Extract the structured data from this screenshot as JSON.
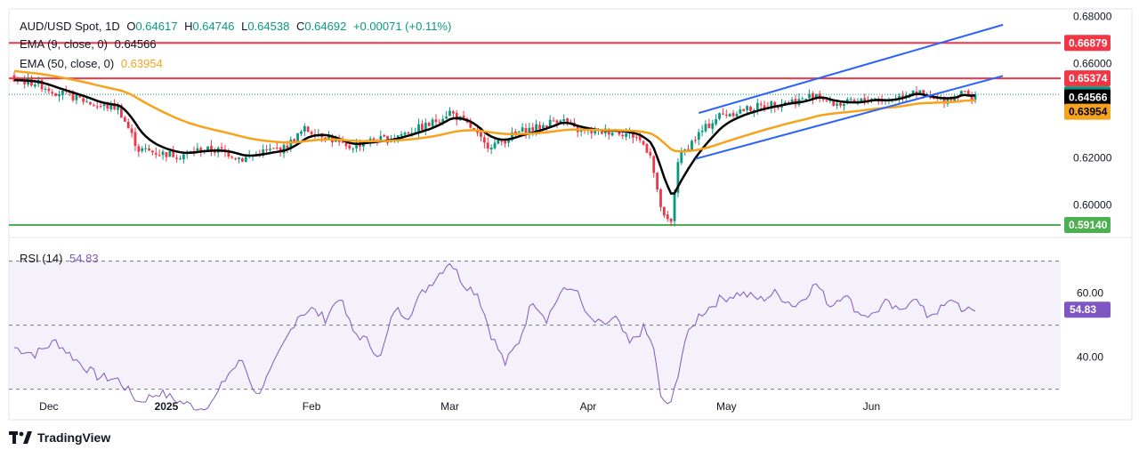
{
  "header": {
    "symbol": "AUD/USD Spot, 1D",
    "open_label": "O",
    "open": "0.64617",
    "high_label": "H",
    "high": "0.64746",
    "low_label": "L",
    "low": "0.64538",
    "close_label": "C",
    "close": "0.64692",
    "change": "+0.00071 (+0.11%)"
  },
  "indicators": {
    "ema9_label": "EMA (9, close, 0)",
    "ema9_value": "0.64566",
    "ema50_label": "EMA (50, close, 0)",
    "ema50_value": "0.63954",
    "rsi_label": "RSI (14)",
    "rsi_value": "54.83"
  },
  "footer": {
    "brand": "TradingView"
  },
  "colors": {
    "up": "#089981",
    "down": "#f23645",
    "ema9": "#000000",
    "ema50": "#f7a21b",
    "channel": "#2962ff",
    "resistance": "#f23645",
    "support": "#4caf50",
    "rsi_line": "#7e57c2",
    "rsi_band": "#ede7f6"
  },
  "chart_data": {
    "type": "candlestick",
    "price_axis": {
      "range": [
        0.588,
        0.6825
      ],
      "ticks": [
        "0.68000",
        "0.66000",
        "0.62000",
        "0.60000"
      ],
      "tick_values": [
        0.68,
        0.66,
        0.62,
        0.6
      ]
    },
    "x_axis": {
      "labels": [
        "Dec",
        "2025",
        "Feb",
        "Mar",
        "Apr",
        "May",
        "Jun"
      ],
      "label_bar_index": [
        10,
        44,
        86,
        126,
        166,
        206,
        248
      ]
    },
    "price_labels": [
      {
        "value": 0.66879,
        "text": "0.66879",
        "color": "#f23645",
        "text_color": "#ffffff"
      },
      {
        "value": 0.65374,
        "text": "0.65374",
        "color": "#f23645",
        "text_color": "#ffffff"
      },
      {
        "value": 0.64692,
        "text": "0.64692",
        "color": "#089981",
        "text_color": "#ffffff"
      },
      {
        "value": 0.64566,
        "text": "0.64566",
        "color": "#000000",
        "text_color": "#ffffff"
      },
      {
        "value": 0.63954,
        "text": "0.63954",
        "color": "#f7a21b",
        "text_color": "#000000"
      },
      {
        "value": 0.5914,
        "text": "0.59140",
        "color": "#4caf50",
        "text_color": "#ffffff"
      }
    ],
    "horizontal_lines": [
      {
        "value": 0.66879,
        "color": "#f23645"
      },
      {
        "value": 0.65374,
        "color": "#f23645"
      },
      {
        "value": 0.5914,
        "color": "#4caf50"
      }
    ],
    "channel_lines": [
      {
        "from_bar": 198,
        "from": 0.639,
        "to_bar": 286,
        "to": 0.6765
      },
      {
        "from_bar": 197,
        "from": 0.6195,
        "to_bar": 286,
        "to": 0.6548
      }
    ],
    "key_points": [
      {
        "bar": 0,
        "close": 0.653
      },
      {
        "bar": 6,
        "close": 0.652
      },
      {
        "bar": 12,
        "close": 0.648
      },
      {
        "bar": 18,
        "close": 0.6455
      },
      {
        "bar": 24,
        "close": 0.642
      },
      {
        "bar": 30,
        "close": 0.6415
      },
      {
        "bar": 36,
        "close": 0.6235
      },
      {
        "bar": 42,
        "close": 0.622
      },
      {
        "bar": 48,
        "close": 0.621
      },
      {
        "bar": 54,
        "close": 0.6235
      },
      {
        "bar": 60,
        "close": 0.623
      },
      {
        "bar": 66,
        "close": 0.6195
      },
      {
        "bar": 72,
        "close": 0.6225
      },
      {
        "bar": 78,
        "close": 0.624
      },
      {
        "bar": 84,
        "close": 0.632
      },
      {
        "bar": 90,
        "close": 0.6295
      },
      {
        "bar": 96,
        "close": 0.624
      },
      {
        "bar": 102,
        "close": 0.627
      },
      {
        "bar": 108,
        "close": 0.628
      },
      {
        "bar": 114,
        "close": 0.631
      },
      {
        "bar": 120,
        "close": 0.634
      },
      {
        "bar": 126,
        "close": 0.6395
      },
      {
        "bar": 132,
        "close": 0.633
      },
      {
        "bar": 136,
        "close": 0.6255
      },
      {
        "bar": 140,
        "close": 0.626
      },
      {
        "bar": 146,
        "close": 0.631
      },
      {
        "bar": 152,
        "close": 0.633
      },
      {
        "bar": 158,
        "close": 0.637
      },
      {
        "bar": 162,
        "close": 0.632
      },
      {
        "bar": 168,
        "close": 0.631
      },
      {
        "bar": 174,
        "close": 0.6315
      },
      {
        "bar": 180,
        "close": 0.629
      },
      {
        "bar": 184,
        "close": 0.622
      },
      {
        "bar": 186,
        "close": 0.605
      },
      {
        "bar": 188,
        "close": 0.594
      },
      {
        "bar": 190,
        "close": 0.592
      },
      {
        "bar": 192,
        "close": 0.619
      },
      {
        "bar": 195,
        "close": 0.625
      },
      {
        "bar": 198,
        "close": 0.63
      },
      {
        "bar": 204,
        "close": 0.638
      },
      {
        "bar": 210,
        "close": 0.64
      },
      {
        "bar": 216,
        "close": 0.642
      },
      {
        "bar": 220,
        "close": 0.643
      },
      {
        "bar": 224,
        "close": 0.644
      },
      {
        "bar": 228,
        "close": 0.6445
      },
      {
        "bar": 232,
        "close": 0.6475
      },
      {
        "bar": 236,
        "close": 0.643
      },
      {
        "bar": 240,
        "close": 0.643
      },
      {
        "bar": 244,
        "close": 0.6435
      },
      {
        "bar": 248,
        "close": 0.6455
      },
      {
        "bar": 252,
        "close": 0.644
      },
      {
        "bar": 256,
        "close": 0.646
      },
      {
        "bar": 260,
        "close": 0.649
      },
      {
        "bar": 264,
        "close": 0.645
      },
      {
        "bar": 268,
        "close": 0.6445
      },
      {
        "bar": 272,
        "close": 0.646
      },
      {
        "bar": 274,
        "close": 0.649
      },
      {
        "bar": 276,
        "close": 0.6455
      },
      {
        "bar": 278,
        "close": 0.6469
      }
    ],
    "rsi": {
      "range": [
        21,
        76
      ],
      "ticks": [
        "60.00",
        "40.00"
      ],
      "tick_values": [
        60,
        40
      ],
      "bands": [
        70,
        50,
        30
      ],
      "last_value": 54.83,
      "key_points": [
        {
          "bar": 0,
          "value": 43
        },
        {
          "bar": 6,
          "value": 41
        },
        {
          "bar": 12,
          "value": 45
        },
        {
          "bar": 18,
          "value": 39
        },
        {
          "bar": 24,
          "value": 34
        },
        {
          "bar": 30,
          "value": 33
        },
        {
          "bar": 36,
          "value": 26
        },
        {
          "bar": 42,
          "value": 29
        },
        {
          "bar": 48,
          "value": 26
        },
        {
          "bar": 54,
          "value": 24
        },
        {
          "bar": 58,
          "value": 27
        },
        {
          "bar": 62,
          "value": 35
        },
        {
          "bar": 66,
          "value": 39
        },
        {
          "bar": 70,
          "value": 28
        },
        {
          "bar": 74,
          "value": 35
        },
        {
          "bar": 78,
          "value": 44
        },
        {
          "bar": 82,
          "value": 53
        },
        {
          "bar": 86,
          "value": 55
        },
        {
          "bar": 90,
          "value": 52
        },
        {
          "bar": 94,
          "value": 59
        },
        {
          "bar": 98,
          "value": 48
        },
        {
          "bar": 102,
          "value": 45
        },
        {
          "bar": 106,
          "value": 40
        },
        {
          "bar": 110,
          "value": 55
        },
        {
          "bar": 114,
          "value": 53
        },
        {
          "bar": 118,
          "value": 60
        },
        {
          "bar": 122,
          "value": 65
        },
        {
          "bar": 126,
          "value": 70
        },
        {
          "bar": 130,
          "value": 63
        },
        {
          "bar": 134,
          "value": 60
        },
        {
          "bar": 138,
          "value": 47
        },
        {
          "bar": 142,
          "value": 38
        },
        {
          "bar": 146,
          "value": 45
        },
        {
          "bar": 150,
          "value": 58
        },
        {
          "bar": 154,
          "value": 52
        },
        {
          "bar": 158,
          "value": 60
        },
        {
          "bar": 162,
          "value": 62
        },
        {
          "bar": 166,
          "value": 52
        },
        {
          "bar": 170,
          "value": 50
        },
        {
          "bar": 174,
          "value": 52
        },
        {
          "bar": 178,
          "value": 44
        },
        {
          "bar": 182,
          "value": 49
        },
        {
          "bar": 185,
          "value": 43
        },
        {
          "bar": 187,
          "value": 27
        },
        {
          "bar": 190,
          "value": 25
        },
        {
          "bar": 192,
          "value": 35
        },
        {
          "bar": 194,
          "value": 45
        },
        {
          "bar": 198,
          "value": 53
        },
        {
          "bar": 204,
          "value": 58
        },
        {
          "bar": 210,
          "value": 60
        },
        {
          "bar": 216,
          "value": 58
        },
        {
          "bar": 220,
          "value": 60
        },
        {
          "bar": 226,
          "value": 56
        },
        {
          "bar": 232,
          "value": 63
        },
        {
          "bar": 236,
          "value": 56
        },
        {
          "bar": 240,
          "value": 60
        },
        {
          "bar": 244,
          "value": 54
        },
        {
          "bar": 248,
          "value": 53
        },
        {
          "bar": 252,
          "value": 57
        },
        {
          "bar": 256,
          "value": 54
        },
        {
          "bar": 260,
          "value": 59
        },
        {
          "bar": 264,
          "value": 53
        },
        {
          "bar": 268,
          "value": 55
        },
        {
          "bar": 272,
          "value": 58
        },
        {
          "bar": 275,
          "value": 54
        },
        {
          "bar": 278,
          "value": 54.83
        }
      ]
    }
  }
}
